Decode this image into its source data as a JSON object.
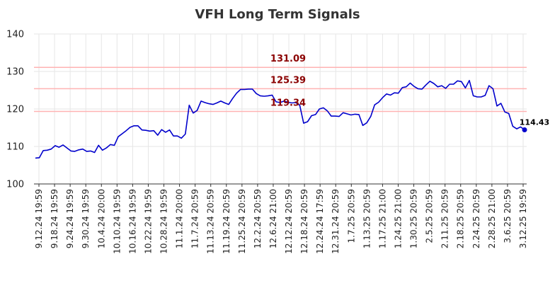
{
  "chart_data": {
    "type": "line",
    "title": "VFH Long Term Signals",
    "xlabel": "",
    "ylabel": "",
    "ylim": [
      100,
      140
    ],
    "yticks": [
      100,
      110,
      120,
      130,
      140
    ],
    "grid": true,
    "colors": {
      "line": "#0000cc",
      "reference": "#ffb3b3",
      "reference_label": "#8b0000",
      "grid": "#e6e6e6"
    },
    "x_tick_labels": [
      "9.12.24 19:59",
      "9.18.24 19:59",
      "9.24.24 19:59",
      "9.30.24 19:59",
      "10.4.24 20:00",
      "10.10.24 19:59",
      "10.16.24 19:59",
      "10.22.24 19:59",
      "10.28.24 19:59",
      "11.1.24 20:00",
      "11.7.24 20:59",
      "11.13.24 20:59",
      "11.19.24 20:59",
      "11.25.24 20:59",
      "12.2.24 20:59",
      "12.6.24 21:00",
      "12.12.24 20:59",
      "12.18.24 20:59",
      "12.24.24 17:59",
      "12.31.24 20:59",
      "1.7.25 20:59",
      "1.13.25 20:59",
      "1.17.25 21:00",
      "1.24.25 21:00",
      "1.30.25 20:59",
      "2.5.25 20:59",
      "2.11.25 20:59",
      "2.18.25 20:59",
      "2.24.25 20:59",
      "2.28.25 21:00",
      "3.6.25 20:59",
      "3.12.25 19:59"
    ],
    "reference_lines": [
      {
        "value": 131.09,
        "label": "131.09"
      },
      {
        "value": 125.39,
        "label": "125.39"
      },
      {
        "value": 119.34,
        "label": "119.34"
      }
    ],
    "last_value_label": "114.43",
    "series": [
      {
        "values": [
          106.9,
          107.0,
          108.9,
          109.0,
          109.3,
          110.2,
          109.8,
          110.4,
          109.6,
          108.8,
          108.7,
          109.1,
          109.3,
          108.7,
          108.8,
          108.4,
          110.3,
          109.0,
          109.6,
          110.5,
          110.3,
          112.6,
          113.4,
          114.2,
          115.1,
          115.5,
          115.5,
          114.4,
          114.3,
          114.1,
          114.2,
          113.0,
          114.5,
          113.8,
          114.4,
          112.8,
          112.8,
          112.2,
          113.3,
          121.0,
          118.9,
          119.6,
          122.1,
          121.7,
          121.4,
          121.2,
          121.6,
          122.1,
          121.6,
          121.2,
          122.8,
          124.2,
          125.2,
          125.2,
          125.3,
          125.3,
          124.1,
          123.5,
          123.4,
          123.5,
          123.7,
          121.9,
          121.7,
          122.1,
          121.8,
          121.6,
          121.7,
          121.0,
          116.2,
          116.6,
          118.2,
          118.5,
          120.0,
          120.3,
          119.5,
          118.1,
          118.1,
          118.0,
          119.0,
          118.7,
          118.4,
          118.6,
          118.5,
          115.6,
          116.3,
          118.0,
          121.1,
          121.8,
          123.0,
          124.0,
          123.7,
          124.3,
          124.2,
          125.7,
          125.9,
          126.9,
          126.0,
          125.4,
          125.3,
          126.4,
          127.4,
          126.8,
          125.9,
          126.2,
          125.5,
          126.6,
          126.6,
          127.5,
          127.3,
          125.6,
          127.6,
          123.5,
          123.2,
          123.2,
          123.6,
          126.2,
          125.4,
          120.8,
          121.5,
          119.2,
          118.8,
          115.4,
          114.7,
          115.2,
          114.43
        ]
      }
    ]
  }
}
